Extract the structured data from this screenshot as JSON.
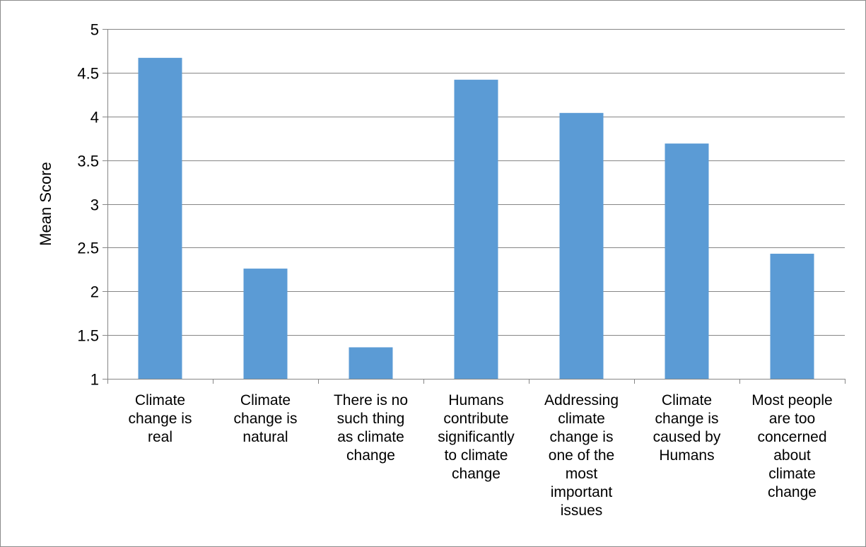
{
  "chart_data": {
    "type": "bar",
    "title": "",
    "xlabel": "",
    "ylabel": "Mean Score",
    "ylim": [
      1,
      5
    ],
    "yticks": [
      "1",
      "1.5",
      "2",
      "2.5",
      "3",
      "3.5",
      "4",
      "4.5",
      "5"
    ],
    "grid": true,
    "legend": "none",
    "bar_color": "#5b9bd5",
    "categories": [
      "Climate change is real",
      "Climate change is natural",
      "There is no such thing as climate change",
      "Humans contribute significantly to climate change",
      "Addressing climate change is one of the most important issues",
      "Climate change is caused by Humans",
      "Most people are too concerned about climate change"
    ],
    "category_lines": [
      [
        "Climate",
        "change is",
        "real"
      ],
      [
        "Climate",
        "change is",
        "natural"
      ],
      [
        "There is no",
        "such thing",
        "as climate",
        "change"
      ],
      [
        "Humans",
        "contribute",
        "significantly",
        "to climate",
        "change"
      ],
      [
        "Addressing",
        "climate",
        "change is",
        "one of the",
        "most",
        "important",
        "issues"
      ],
      [
        "Climate",
        "change is",
        "caused by",
        "Humans"
      ],
      [
        "Most people",
        "are too",
        "concerned",
        "about",
        "climate",
        "change"
      ]
    ],
    "values": [
      4.67,
      2.26,
      1.36,
      4.42,
      4.04,
      3.69,
      2.43
    ]
  }
}
